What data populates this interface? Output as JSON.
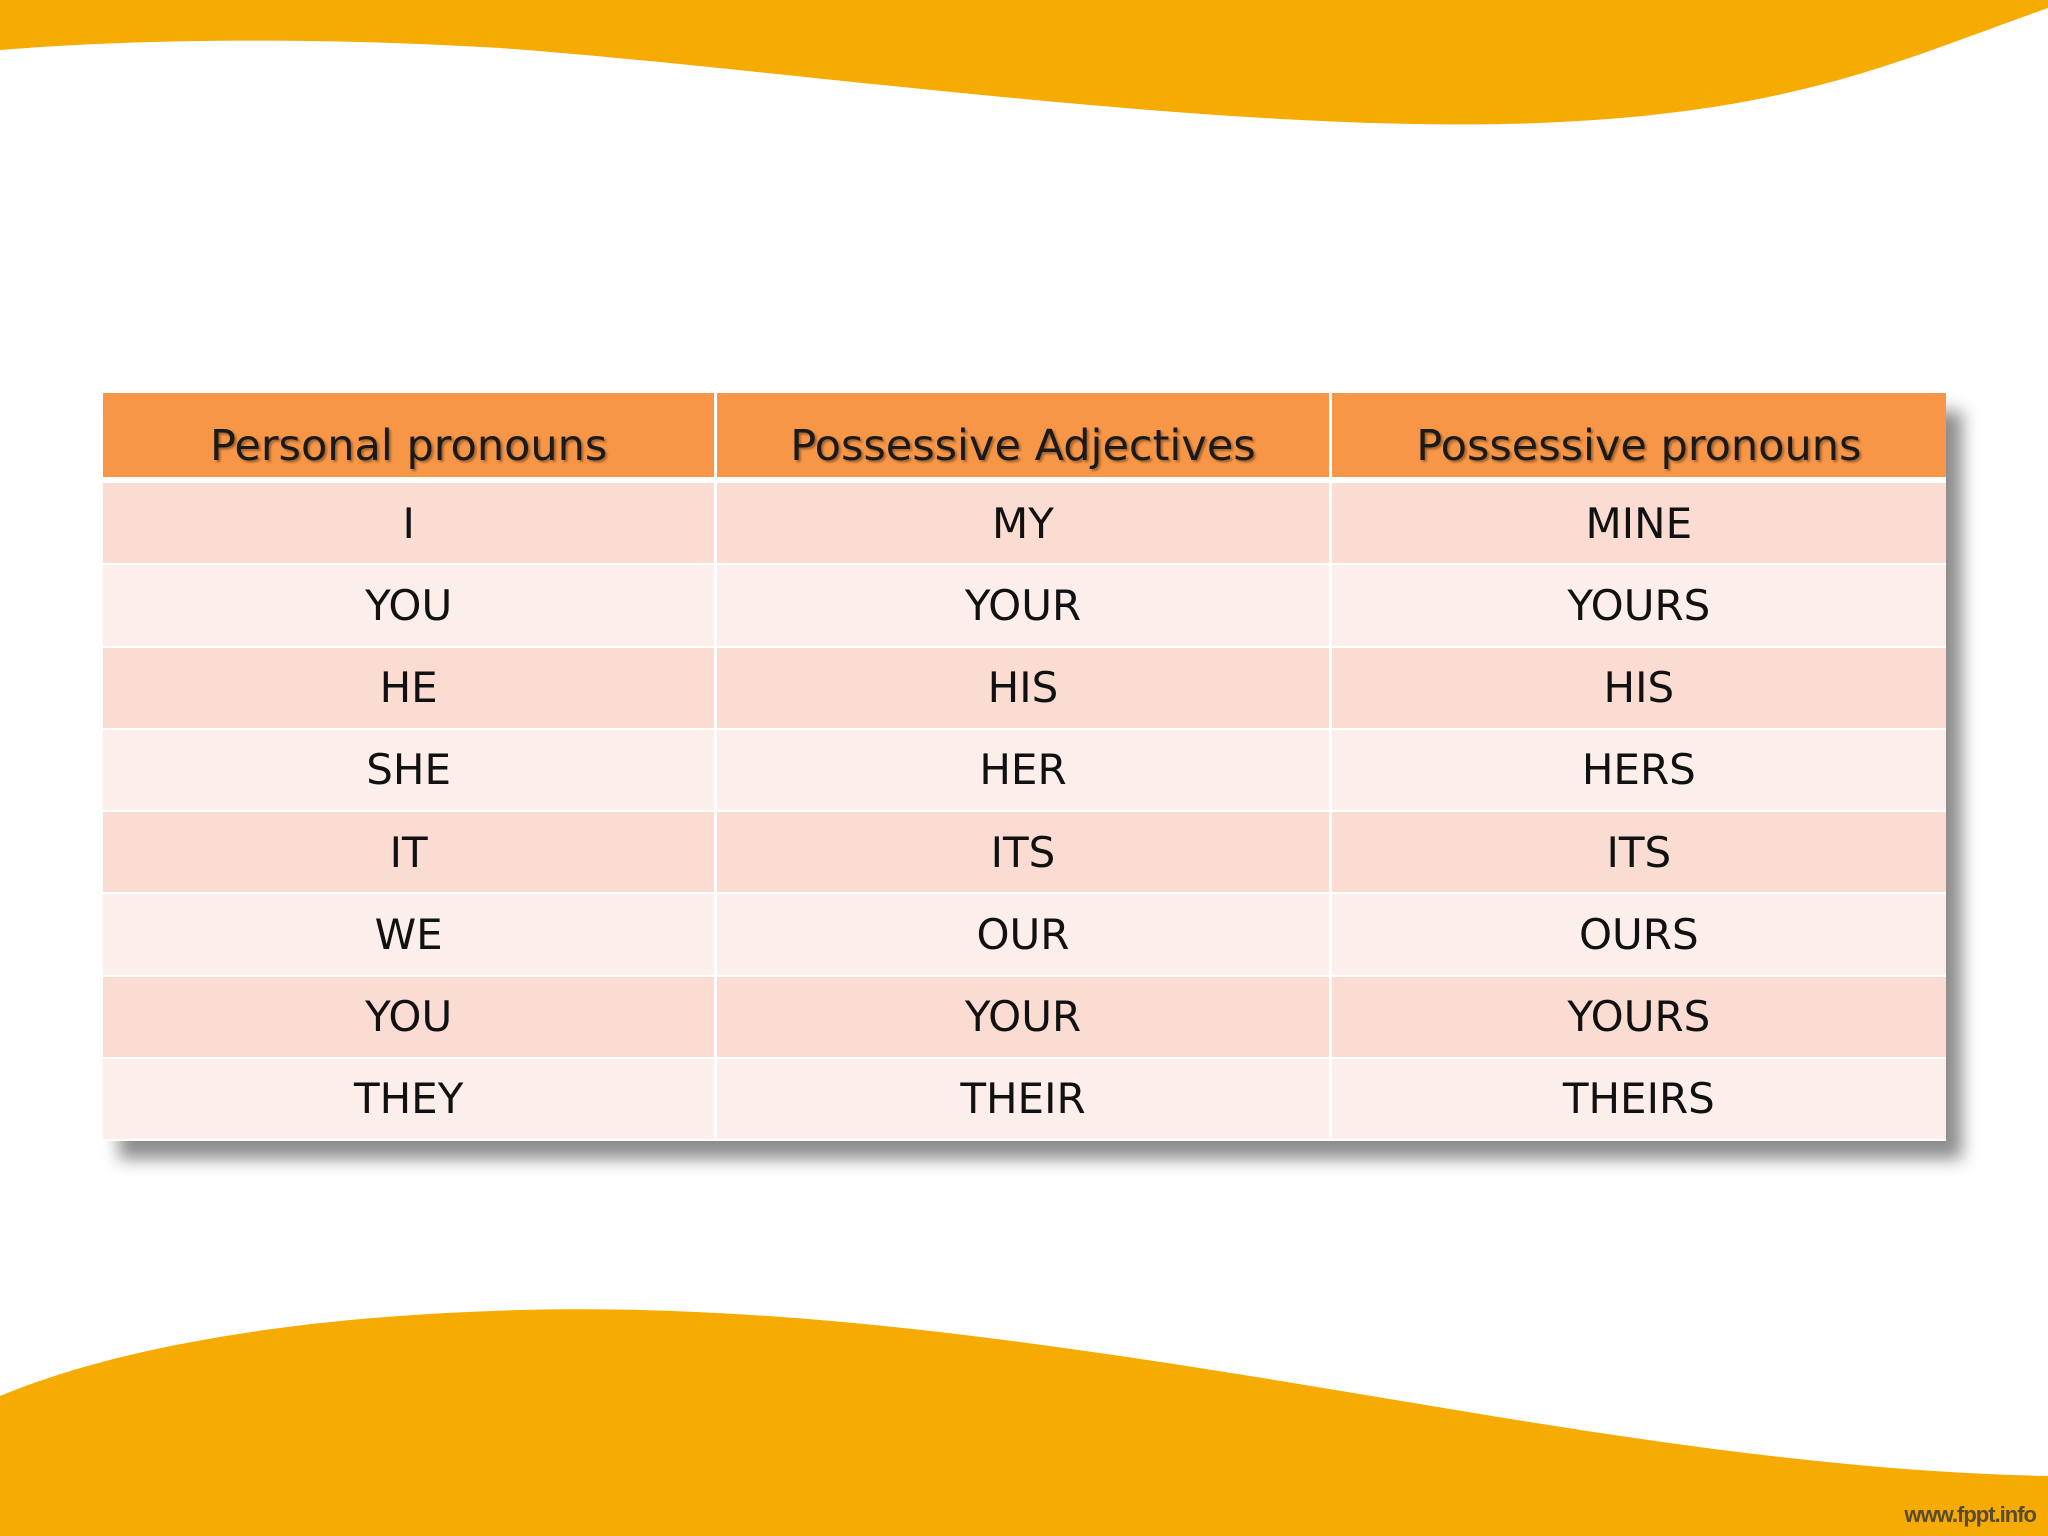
{
  "colors": {
    "wave": "#f5ab00",
    "header_bg": "#f79646",
    "row_odd_bg": "#fadcd2",
    "row_even_bg": "#fcefeb"
  },
  "table": {
    "headers": [
      "Personal pronouns",
      "Possessive Adjectives",
      "Possessive pronouns"
    ],
    "rows": [
      [
        "I",
        "MY",
        "MINE"
      ],
      [
        "YOU",
        "YOUR",
        "YOURS"
      ],
      [
        "HE",
        "HIS",
        "HIS"
      ],
      [
        "SHE",
        "HER",
        "HERS"
      ],
      [
        "IT",
        "ITS",
        "ITS"
      ],
      [
        "WE",
        "OUR",
        "OURS"
      ],
      [
        "YOU",
        "YOUR",
        "YOURS"
      ],
      [
        "THEY",
        "THEIR",
        "THEIRS"
      ]
    ]
  },
  "credit": "www.fppt.info"
}
